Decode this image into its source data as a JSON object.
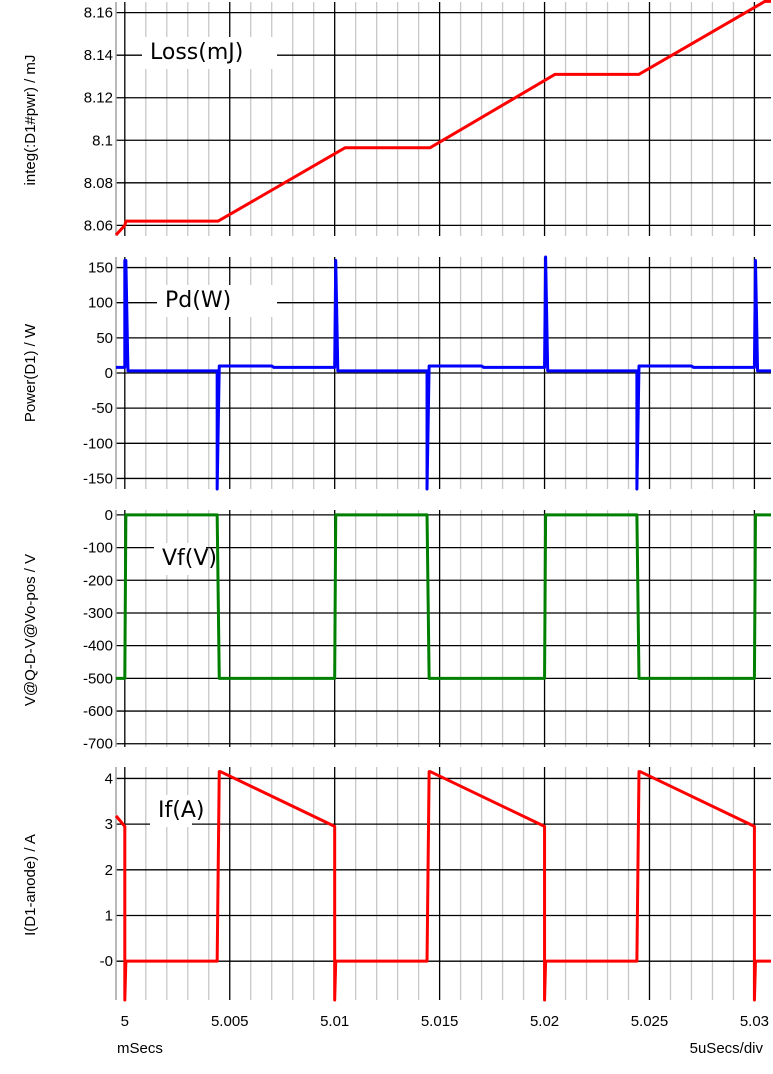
{
  "footer": {
    "x_units": "mSecs",
    "x_scale": "5uSecs/div"
  },
  "chart_data": [
    {
      "type": "line",
      "ylabel": "integ(:D1#pwr) / mJ",
      "trace_label": "Loss(mJ)",
      "color": "#ff0000",
      "ylim": [
        8.055,
        8.165
      ],
      "yticks": [
        8.06,
        8.08,
        8.1,
        8.12,
        8.14,
        8.16
      ],
      "ytick_labels": [
        "8.06",
        "8.08",
        "8.1",
        "8.12",
        "8.14",
        "8.16"
      ],
      "xlim": [
        4.99958,
        5.03079
      ],
      "x": [
        4.99958,
        5.0,
        5.00005,
        5.00445,
        5.0105,
        5.01455,
        5.0205,
        5.0245,
        5.0305,
        5.03079
      ],
      "y": [
        8.0555,
        8.06,
        8.062,
        8.062,
        8.0965,
        8.0965,
        8.131,
        8.131,
        8.1653,
        8.1653
      ]
    },
    {
      "type": "line",
      "ylabel": "Power(D1) / W",
      "trace_label": "Pd(W)",
      "color": "#0000ff",
      "ylim": [
        -165,
        165
      ],
      "yticks": [
        -150,
        -100,
        -50,
        0,
        50,
        100,
        150
      ],
      "ytick_labels": [
        "-150",
        "-100",
        "-50",
        "0",
        "50",
        "100",
        "150"
      ],
      "xlim": [
        4.99958,
        5.03079
      ],
      "x": [
        4.99958,
        5.0,
        5.0,
        5.00005,
        5.00015,
        5.0044,
        5.0044,
        5.0045,
        5.007,
        5.0071,
        5.01,
        5.01005,
        5.01005,
        5.01015,
        5.0144,
        5.0144,
        5.0145,
        5.017,
        5.0171,
        5.02,
        5.02005,
        5.02005,
        5.02015,
        5.0244,
        5.0244,
        5.0245,
        5.027,
        5.0271,
        5.03,
        5.03005,
        5.03005,
        5.03015,
        5.03079
      ],
      "y": [
        8,
        8,
        160,
        160,
        3,
        3,
        -165,
        10,
        10,
        8,
        8,
        160,
        160,
        3,
        3,
        -165,
        10,
        10,
        8,
        8,
        165,
        165,
        3,
        3,
        -165,
        10,
        10,
        8,
        8,
        160,
        160,
        3,
        3
      ]
    },
    {
      "type": "line",
      "ylabel": "V@Q-D-V@Vo-pos / V",
      "trace_label": "Vf(V)",
      "color": "#008000",
      "ylim": [
        -710,
        15
      ],
      "yticks": [
        -700,
        -600,
        -500,
        -400,
        -300,
        -200,
        -100,
        0
      ],
      "ytick_labels": [
        "-700",
        "-600",
        "-500",
        "-400",
        "-300",
        "-200",
        "-100",
        "0"
      ],
      "xlim": [
        4.99958,
        5.03079
      ],
      "x": [
        4.99958,
        5.0,
        5.00005,
        5.0044,
        5.0045,
        5.01,
        5.01005,
        5.0144,
        5.0145,
        5.02,
        5.02005,
        5.0244,
        5.0245,
        5.03,
        5.03005,
        5.03079
      ],
      "y": [
        -500,
        -500,
        0,
        0,
        -500,
        -500,
        0,
        0,
        -500,
        -500,
        0,
        0,
        -500,
        -500,
        0,
        0
      ]
    },
    {
      "type": "line",
      "ylabel": "I(D1-anode) / A",
      "trace_label": "If(A)",
      "color": "#ff0000",
      "ylim": [
        -0.85,
        4.25
      ],
      "yticks": [
        0,
        1,
        2,
        3,
        4
      ],
      "ytick_labels": [
        "-0",
        "1",
        "2",
        "3",
        "4"
      ],
      "xlim": [
        4.99958,
        5.03079
      ],
      "xticks": [
        5.0,
        5.005,
        5.01,
        5.015,
        5.02,
        5.025,
        5.03
      ],
      "xtick_labels": [
        "5",
        "5.005",
        "5.01",
        "5.015",
        "5.02",
        "5.025",
        "5.03"
      ],
      "x": [
        4.99958,
        5.0,
        5.0,
        5.00005,
        5.00008,
        5.0044,
        5.0045,
        5.00455,
        5.01,
        5.01,
        5.01005,
        5.01008,
        5.0144,
        5.0145,
        5.01455,
        5.02,
        5.02,
        5.02005,
        5.02008,
        5.0244,
        5.0245,
        5.02455,
        5.03,
        5.03,
        5.03005,
        5.03008,
        5.03079
      ],
      "y": [
        3.18,
        2.95,
        -0.85,
        0.0,
        0.0,
        0.0,
        4.15,
        4.15,
        2.95,
        -0.85,
        0.0,
        0.0,
        0.0,
        4.15,
        4.15,
        2.95,
        -0.85,
        0.0,
        0.0,
        0.0,
        4.15,
        4.15,
        2.95,
        -0.85,
        0.0,
        0.0,
        0.0
      ]
    }
  ]
}
